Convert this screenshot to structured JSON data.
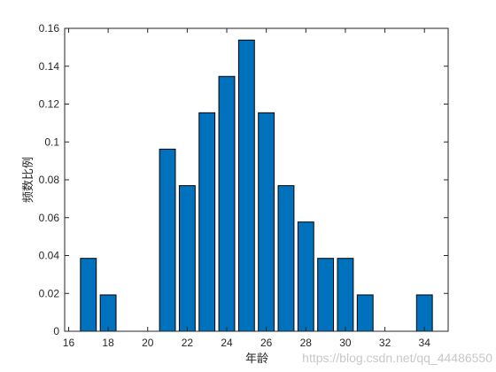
{
  "chart_data": {
    "type": "bar",
    "x": [
      17,
      18,
      21,
      22,
      23,
      24,
      25,
      26,
      27,
      28,
      29,
      30,
      31,
      34
    ],
    "values": [
      0.0385,
      0.0192,
      0.0962,
      0.0769,
      0.1154,
      0.1346,
      0.1538,
      0.1154,
      0.0769,
      0.0577,
      0.0385,
      0.0385,
      0.0192,
      0.0192
    ],
    "color": "#0072bd",
    "bar_width": 0.8,
    "xlim": [
      15.8,
      35.2
    ],
    "xticks": [
      16,
      18,
      20,
      22,
      24,
      26,
      28,
      30,
      32,
      34
    ],
    "ylim": [
      0,
      0.16
    ],
    "yticks": [
      0,
      0.02,
      0.04,
      0.06,
      0.08,
      0.1,
      0.12,
      0.14,
      0.16
    ],
    "xlabel": "年龄",
    "ylabel": "频数比例",
    "watermark": "https://blog.csdn.net/qq_44486550"
  }
}
